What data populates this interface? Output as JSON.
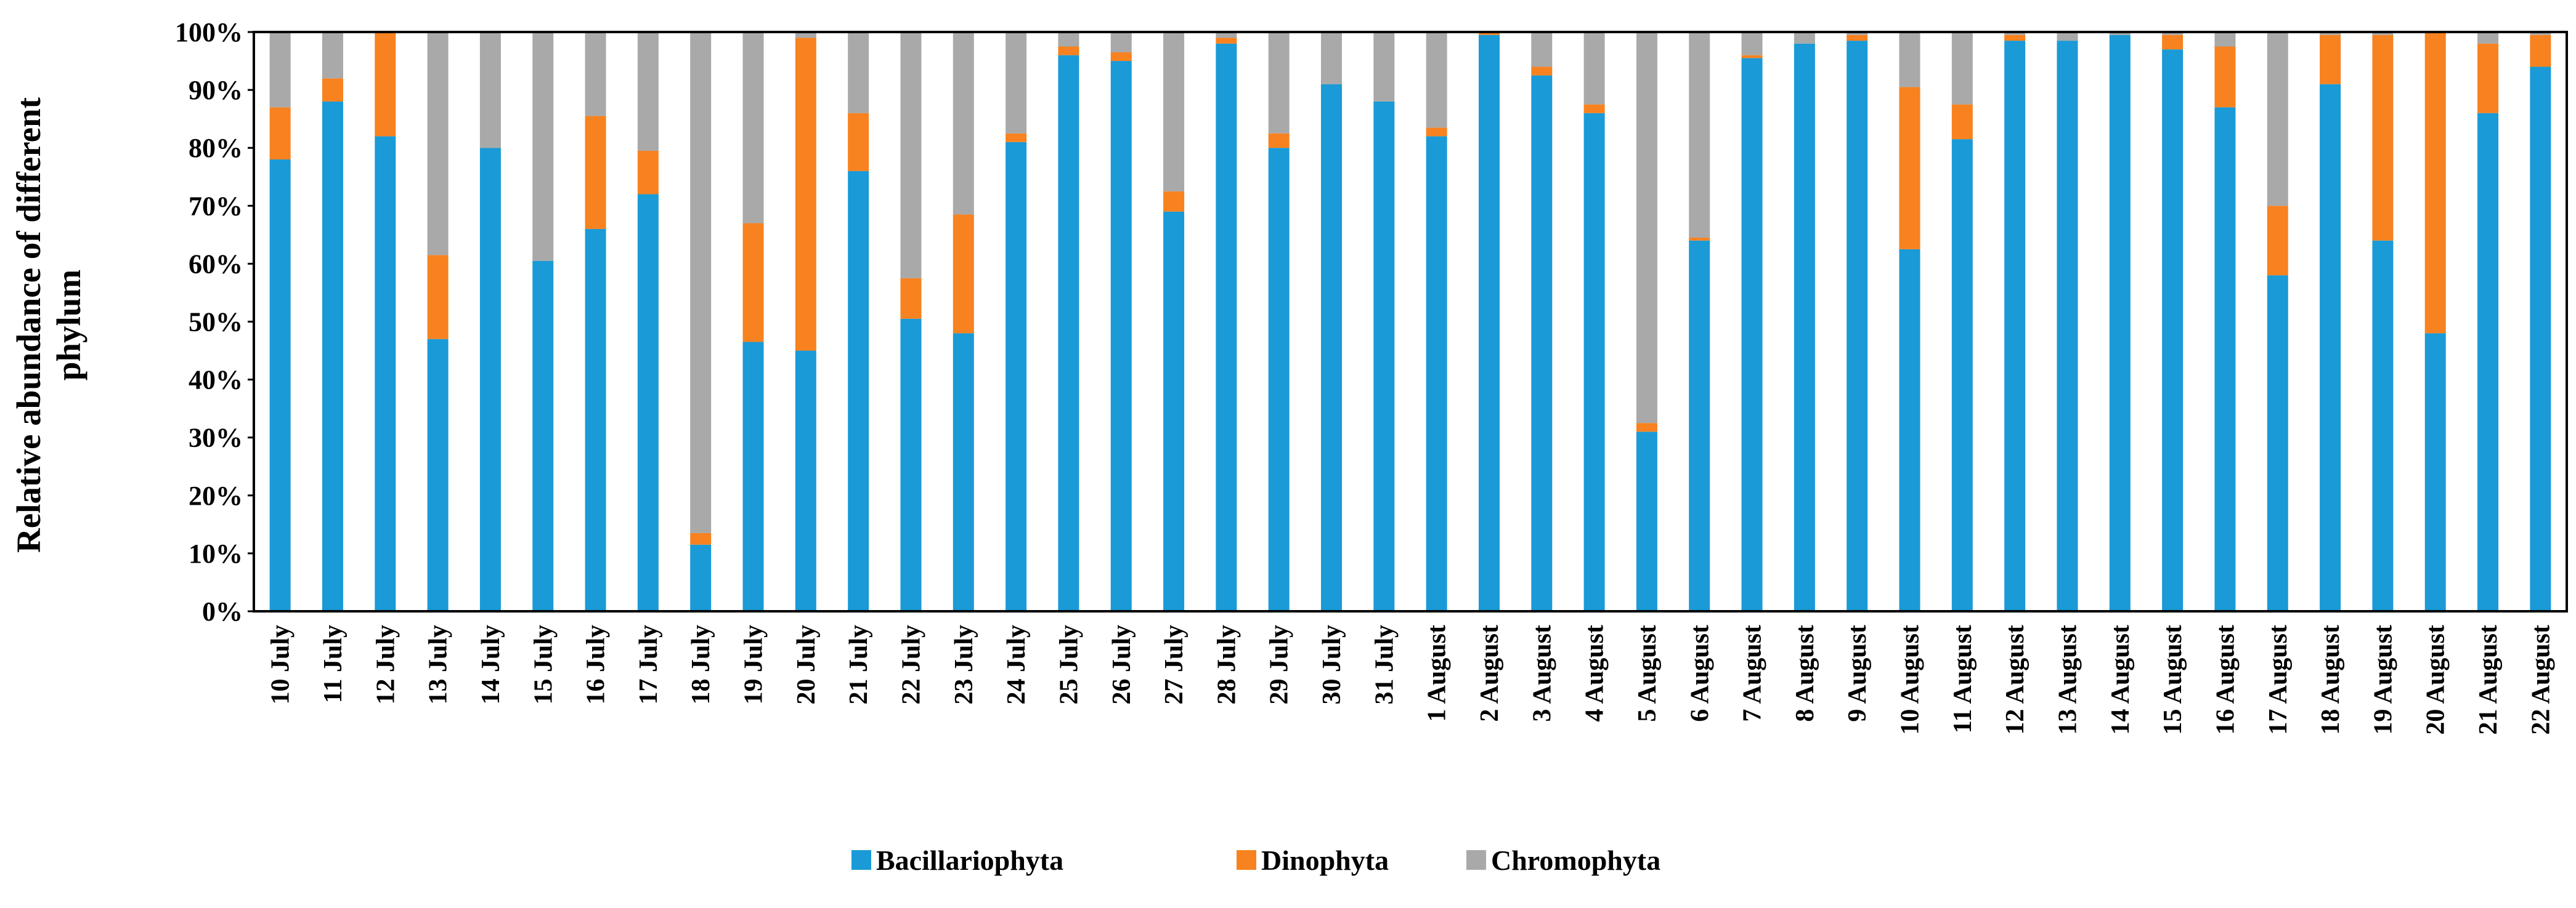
{
  "chart_data": {
    "type": "bar",
    "stacked": true,
    "title": "",
    "xlabel": "",
    "ylabel_lines": [
      "Relative abundance of different",
      "phylum"
    ],
    "ylim": [
      0,
      100
    ],
    "yticks": [
      "0%",
      "10%",
      "20%",
      "30%",
      "40%",
      "50%",
      "60%",
      "70%",
      "80%",
      "90%",
      "100%"
    ],
    "categories": [
      "10 July",
      "11 July",
      "12 July",
      "13 July",
      "14 July",
      "15 July",
      "16 July",
      "17 July",
      "18 July",
      "19 July",
      "20 July",
      "21 July",
      "22 July",
      "23 July",
      "24 July",
      "25 July",
      "26 July",
      "27 July",
      "28 July",
      "29 July",
      "30 July",
      "31 July",
      "1 August",
      "2 August",
      "3 August",
      "4 August",
      "5 August",
      "6 August",
      "7 August",
      "8 August",
      "9 August",
      "10 August",
      "11 August",
      "12 August",
      "13 August",
      "14 August",
      "15 August",
      "16 August",
      "17 August",
      "18 August",
      "19 August",
      "20 August",
      "21 August",
      "22 August"
    ],
    "series": [
      {
        "name": "Bacillariophyta",
        "color": "#1a9ad6",
        "values": [
          78,
          88,
          82,
          47,
          80,
          60.5,
          66,
          72,
          11.5,
          46.5,
          45,
          76,
          50.5,
          48,
          81,
          96,
          95,
          69,
          98,
          80,
          91,
          88,
          82,
          99.5,
          92.5,
          86,
          31,
          64,
          95.5,
          98,
          98.5,
          62.5,
          81.5,
          98.5,
          98.5,
          99.5,
          97,
          87,
          58,
          91,
          64,
          48,
          86,
          94
        ]
      },
      {
        "name": "Dinophyta",
        "color": "#f7821f",
        "values": [
          9,
          4,
          18,
          14.5,
          0,
          0,
          19.5,
          7.5,
          2,
          20.5,
          54,
          10,
          7,
          20.5,
          1.5,
          1.5,
          1.5,
          3.5,
          1,
          2.5,
          0,
          0,
          1.5,
          0.5,
          1.5,
          1.5,
          1.5,
          0.5,
          0.5,
          0,
          1,
          28,
          6,
          1,
          0,
          0,
          2.5,
          10.5,
          12,
          8.5,
          35.5,
          52,
          12,
          5.5
        ]
      },
      {
        "name": "Chromophyta",
        "color": "#a9a9a9",
        "values": [
          13,
          8,
          0,
          38.5,
          20,
          39.5,
          14.5,
          20.5,
          86.5,
          33,
          1,
          14,
          42.5,
          31.5,
          17.5,
          2.5,
          3.5,
          27.5,
          1,
          17.5,
          9,
          12,
          16.5,
          0,
          6,
          12.5,
          67.5,
          35.5,
          4,
          2,
          0.5,
          9.5,
          12.5,
          0.5,
          1.5,
          0.5,
          0.5,
          2.5,
          30,
          0.5,
          0.5,
          0,
          2,
          0.5
        ]
      }
    ],
    "legend_position": "bottom-center"
  }
}
